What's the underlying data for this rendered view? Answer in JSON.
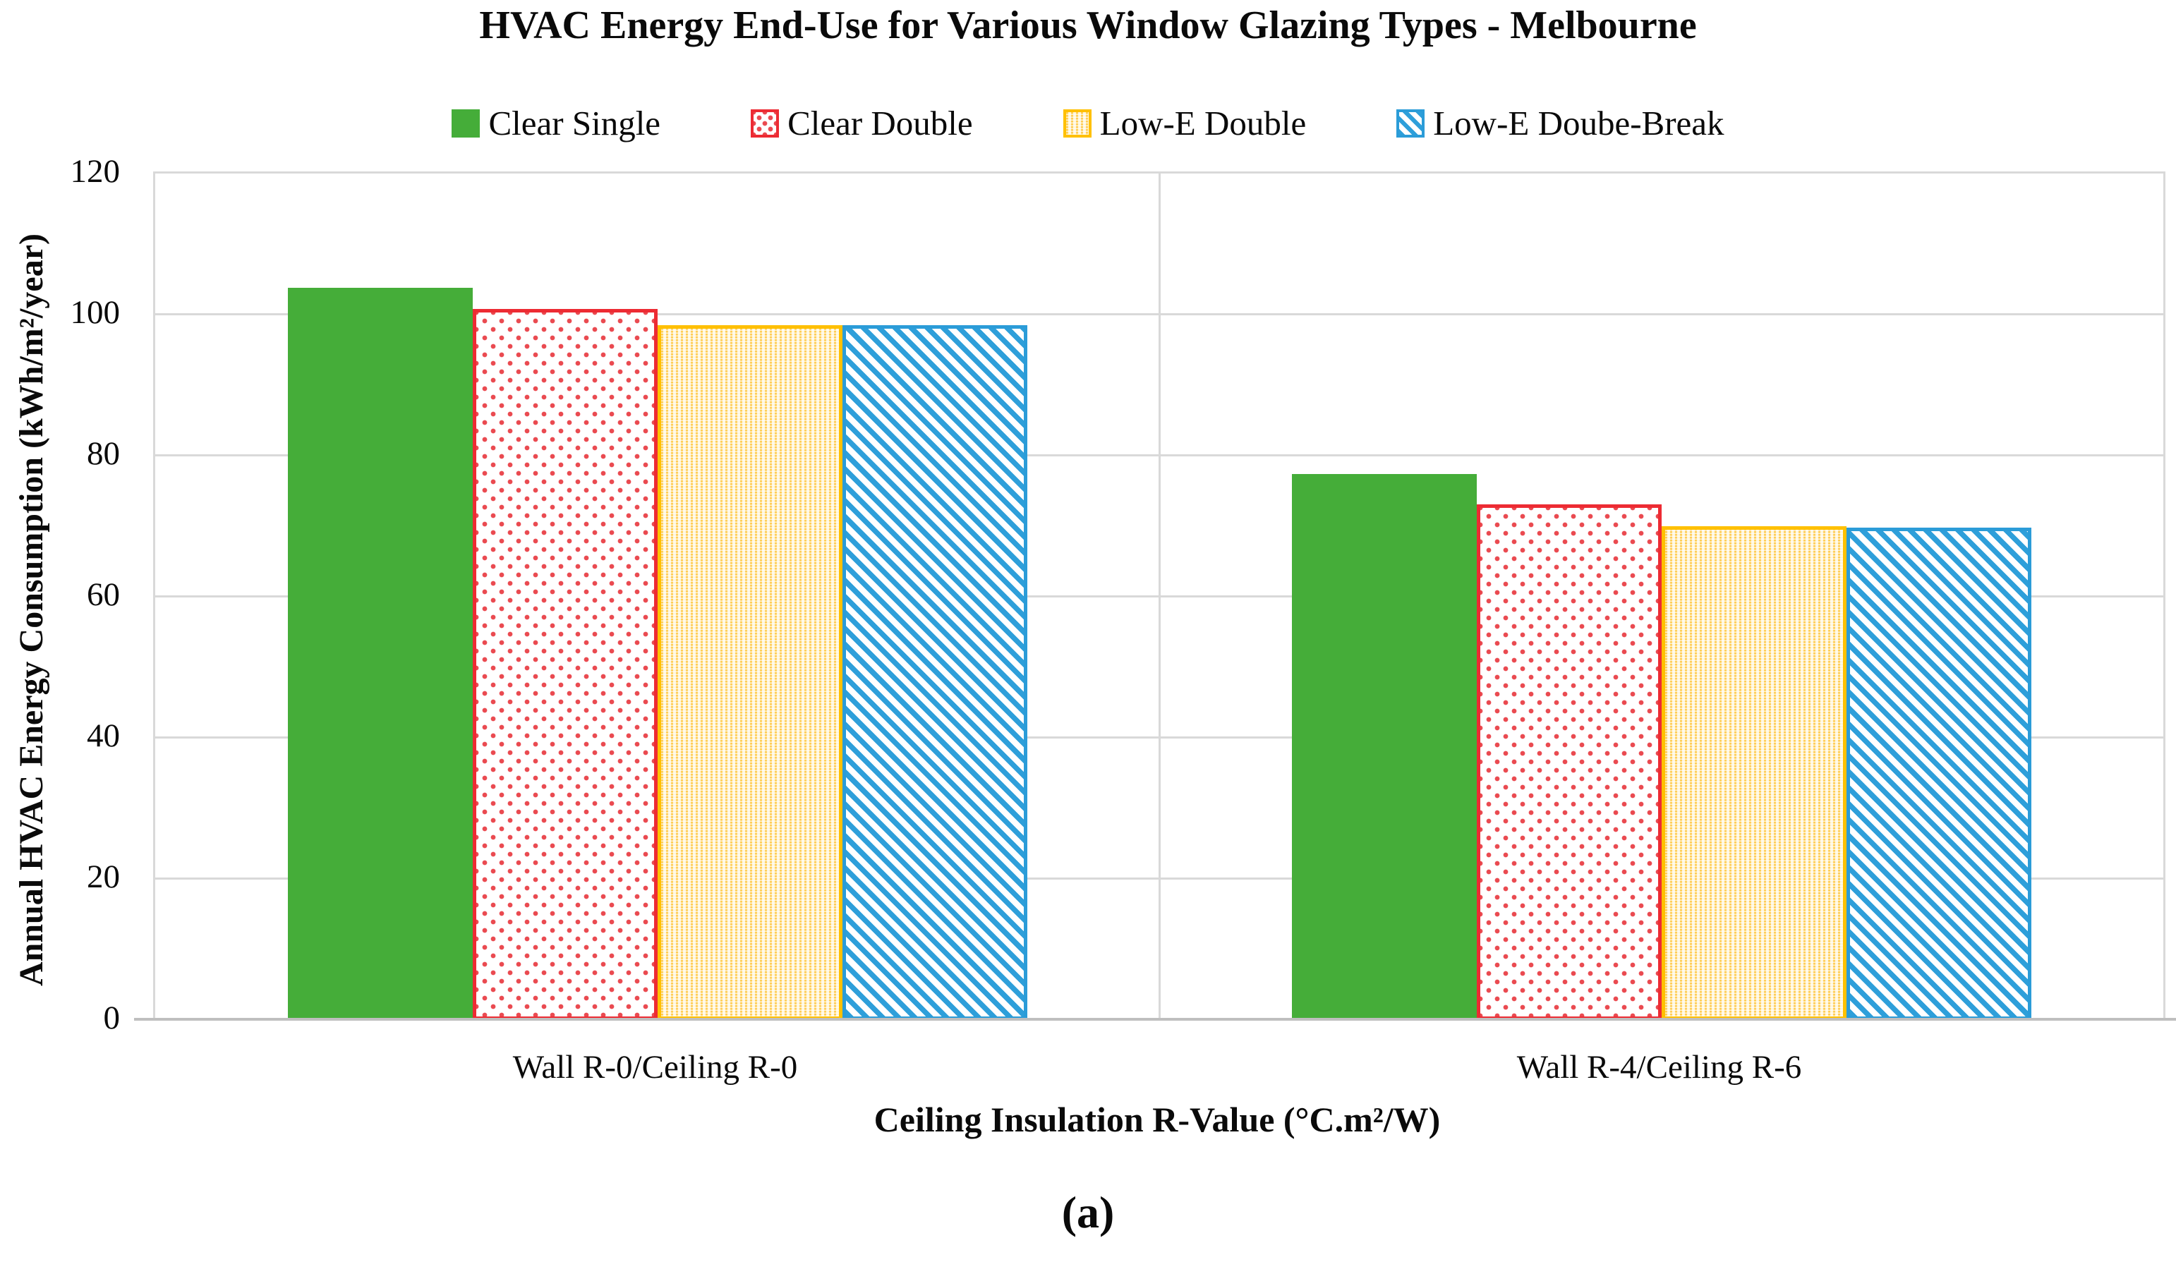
{
  "title": "HVAC Energy End-Use for Various Window Glazing Types - Melbourne",
  "caption": "(a)",
  "chart_data": {
    "type": "bar",
    "title": "HVAC Energy End-Use for Various Window Glazing Types - Melbourne",
    "categories": [
      "Wall R-0/Ceiling R-0",
      "Wall R-4/Ceiling R-6"
    ],
    "series": [
      {
        "name": "Clear Single",
        "pattern": "clear-single",
        "color": "#45AD39",
        "values": [
          103.8,
          77.4
        ]
      },
      {
        "name": "Clear Double",
        "pattern": "clear-double",
        "color": "#ED2B33",
        "values": [
          100.8,
          73.1
        ]
      },
      {
        "name": "Low-E Double",
        "pattern": "lowe-double",
        "color": "#FFC000",
        "values": [
          98.5,
          70.0
        ]
      },
      {
        "name": "Low-E Doube-Break",
        "pattern": "lowe-break",
        "color": "#2B9CD8",
        "values": [
          98.5,
          69.8
        ]
      }
    ],
    "xlabel": "Ceiling Insulation R-Value (°C.m²/W)",
    "ylabel": "Annual HVAC Energy Consumption (kWh/m²/year)",
    "ylim": [
      0,
      120
    ],
    "yticks": [
      0,
      20,
      40,
      60,
      80,
      100,
      120
    ],
    "grid": "horizontal",
    "legend_position": "top",
    "gridline_color": "#D9D9D9",
    "axis_line_color": "#BFBFBF"
  }
}
